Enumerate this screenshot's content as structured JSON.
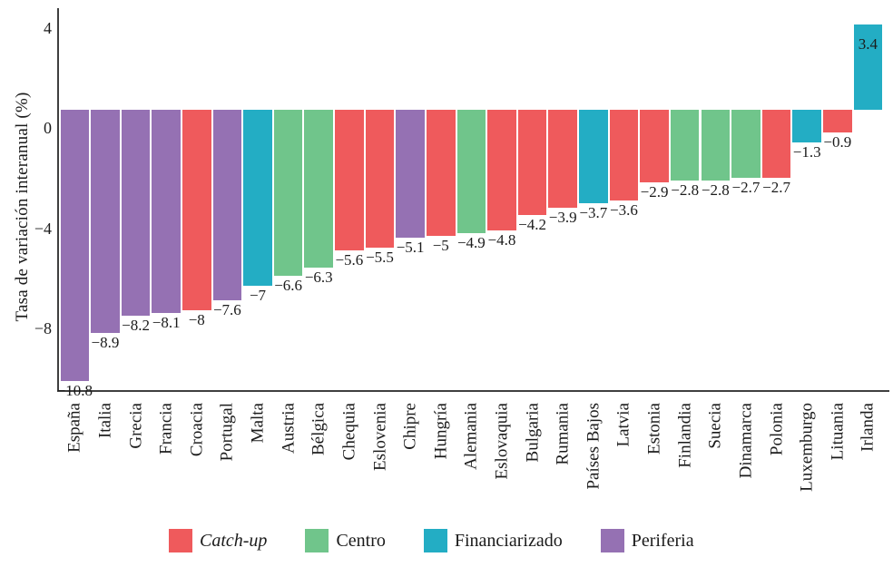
{
  "chart_data": {
    "type": "bar",
    "title": "",
    "xlabel": "",
    "ylabel": "Tasa de variación interanual (%)",
    "y_ticks": [
      {
        "value": 4,
        "label": "4"
      },
      {
        "value": 0,
        "label": "0"
      },
      {
        "value": -4,
        "label": "−4"
      },
      {
        "value": -8,
        "label": "−8"
      }
    ],
    "ylim": [
      -10.7,
      4.8
    ],
    "grid": false,
    "bar_baseline_offset": 0.71,
    "legend_position": "bottom",
    "colors": {
      "Catch-up": "#ef5a5c",
      "Centro": "#70c58b",
      "Financiarizado": "#23adc4",
      "Periferia": "#9571b3"
    },
    "legend": [
      {
        "label": "Catch-up",
        "group": "Catch-up",
        "italic": true
      },
      {
        "label": "Centro",
        "group": "Centro",
        "italic": false
      },
      {
        "label": "Financiarizado",
        "group": "Financiarizado",
        "italic": false
      },
      {
        "label": "Periferia",
        "group": "Periferia",
        "italic": false
      }
    ],
    "bars": [
      {
        "country": "España",
        "value": -10.8,
        "label": "−10.8",
        "group": "Periferia"
      },
      {
        "country": "Italia",
        "value": -8.9,
        "label": "−8.9",
        "group": "Periferia"
      },
      {
        "country": "Grecia",
        "value": -8.2,
        "label": "−8.2",
        "group": "Periferia"
      },
      {
        "country": "Francia",
        "value": -8.1,
        "label": "−8.1",
        "group": "Periferia"
      },
      {
        "country": "Croacia",
        "value": -8,
        "label": "−8",
        "group": "Catch-up"
      },
      {
        "country": "Portugal",
        "value": -7.6,
        "label": "−7.6",
        "group": "Periferia"
      },
      {
        "country": "Malta",
        "value": -7,
        "label": "−7",
        "group": "Financiarizado"
      },
      {
        "country": "Austria",
        "value": -6.6,
        "label": "−6.6",
        "group": "Centro"
      },
      {
        "country": "Bélgica",
        "value": -6.3,
        "label": "−6.3",
        "group": "Centro"
      },
      {
        "country": "Chequia",
        "value": -5.6,
        "label": "−5.6",
        "group": "Catch-up"
      },
      {
        "country": "Eslovenia",
        "value": -5.5,
        "label": "−5.5",
        "group": "Catch-up"
      },
      {
        "country": "Chipre",
        "value": -5.1,
        "label": "−5.1",
        "group": "Periferia"
      },
      {
        "country": "Hungría",
        "value": -5,
        "label": "−5",
        "group": "Catch-up"
      },
      {
        "country": "Alemania",
        "value": -4.9,
        "label": "−4.9",
        "group": "Centro"
      },
      {
        "country": "Eslovaquia",
        "value": -4.8,
        "label": "−4.8",
        "group": "Catch-up"
      },
      {
        "country": "Bulgaria",
        "value": -4.2,
        "label": "−4.2",
        "group": "Catch-up"
      },
      {
        "country": "Rumania",
        "value": -3.9,
        "label": "−3.9",
        "group": "Catch-up"
      },
      {
        "country": "Países Bajos",
        "value": -3.7,
        "label": "−3.7",
        "group": "Financiarizado"
      },
      {
        "country": "Latvia",
        "value": -3.6,
        "label": "−3.6",
        "group": "Catch-up"
      },
      {
        "country": "Estonia",
        "value": -2.9,
        "label": "−2.9",
        "group": "Catch-up"
      },
      {
        "country": "Finlandia",
        "value": -2.8,
        "label": "−2.8",
        "group": "Centro"
      },
      {
        "country": "Suecia",
        "value": -2.8,
        "label": "−2.8",
        "group": "Centro"
      },
      {
        "country": "Dinamarca",
        "value": -2.7,
        "label": "−2.7",
        "group": "Centro"
      },
      {
        "country": "Polonia",
        "value": -2.7,
        "label": "−2.7",
        "group": "Catch-up"
      },
      {
        "country": "Luxemburgo",
        "value": -1.3,
        "label": "−1.3",
        "group": "Financiarizado"
      },
      {
        "country": "Lituania",
        "value": -0.9,
        "label": "−0.9",
        "group": "Catch-up"
      },
      {
        "country": "Irlanda",
        "value": 3.4,
        "label": "3.4",
        "group": "Financiarizado"
      }
    ]
  }
}
